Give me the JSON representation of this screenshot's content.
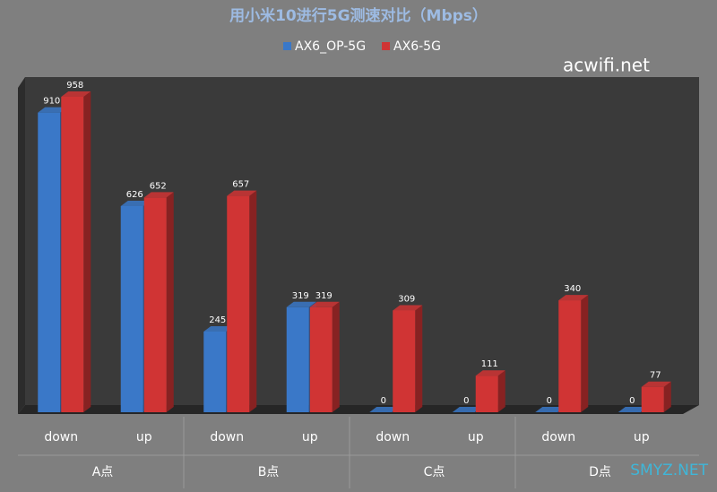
{
  "chart_data": {
    "type": "bar3d",
    "title": "用小米10进行5G测速对比（Mbps）",
    "groups": [
      "A点",
      "B点",
      "C点",
      "D点"
    ],
    "categories": [
      "down",
      "up",
      "down",
      "up",
      "down",
      "up",
      "down",
      "up"
    ],
    "series": [
      {
        "name": "AX6_OP-5G",
        "color": "#3a78c8",
        "values": [
          910,
          626,
          245,
          319,
          0,
          0,
          0,
          0
        ]
      },
      {
        "name": "AX6-5G",
        "color": "#d03434",
        "values": [
          958,
          652,
          657,
          319,
          309,
          111,
          340,
          77
        ]
      }
    ],
    "annotations": [
      "acwifi.net",
      "SMYZ.NET"
    ]
  }
}
